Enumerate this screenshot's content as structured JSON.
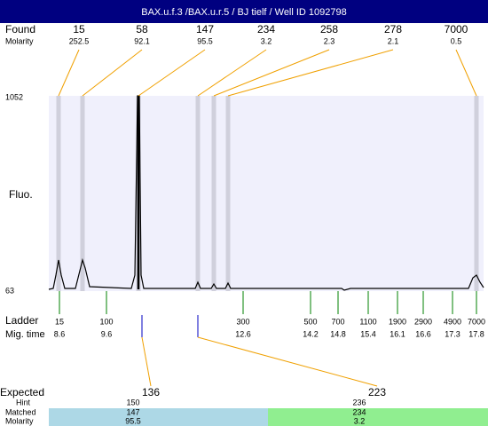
{
  "title": "BAX.u.f.3 /BAX.u.r.5 / BJ tielf / Well ID 1092798",
  "found": {
    "label": "Found",
    "sub_label": "Molarity",
    "peaks": [
      {
        "size": 15,
        "molarity": 252.5
      },
      {
        "size": 58,
        "molarity": 92.1
      },
      {
        "size": 147,
        "molarity": 95.5
      },
      {
        "size": 234,
        "molarity": 3.2
      },
      {
        "size": 258,
        "molarity": 2.3
      },
      {
        "size": 278,
        "molarity": 2.1
      },
      {
        "size": 7000,
        "molarity": 0.5
      }
    ]
  },
  "y_axis": {
    "top": 1052,
    "bottom": 63,
    "label": "Fluo."
  },
  "ladder": {
    "label": "Ladder",
    "sub_label": "Mig. time",
    "bands": [
      {
        "size": 15,
        "time": 8.6
      },
      {
        "size": 100,
        "time": 9.6
      },
      {
        "size": 300,
        "time": 12.6
      },
      {
        "size": 500,
        "time": 14.2
      },
      {
        "size": 700,
        "time": 14.8
      },
      {
        "size": 1100,
        "time": 15.4
      },
      {
        "size": 1900,
        "time": 16.1
      },
      {
        "size": 2900,
        "time": 16.6
      },
      {
        "size": 4900,
        "time": 17.3
      },
      {
        "size": 7000,
        "time": 17.8
      }
    ]
  },
  "expected": {
    "labels": [
      "Expected",
      "Hint",
      "Matched",
      "Molarity"
    ],
    "columns": [
      {
        "expected": 136,
        "hint": 150,
        "matched": 147,
        "molarity": 95.5
      },
      {
        "expected": 223,
        "hint": 236,
        "matched": 234,
        "molarity": 3.2
      }
    ]
  }
}
